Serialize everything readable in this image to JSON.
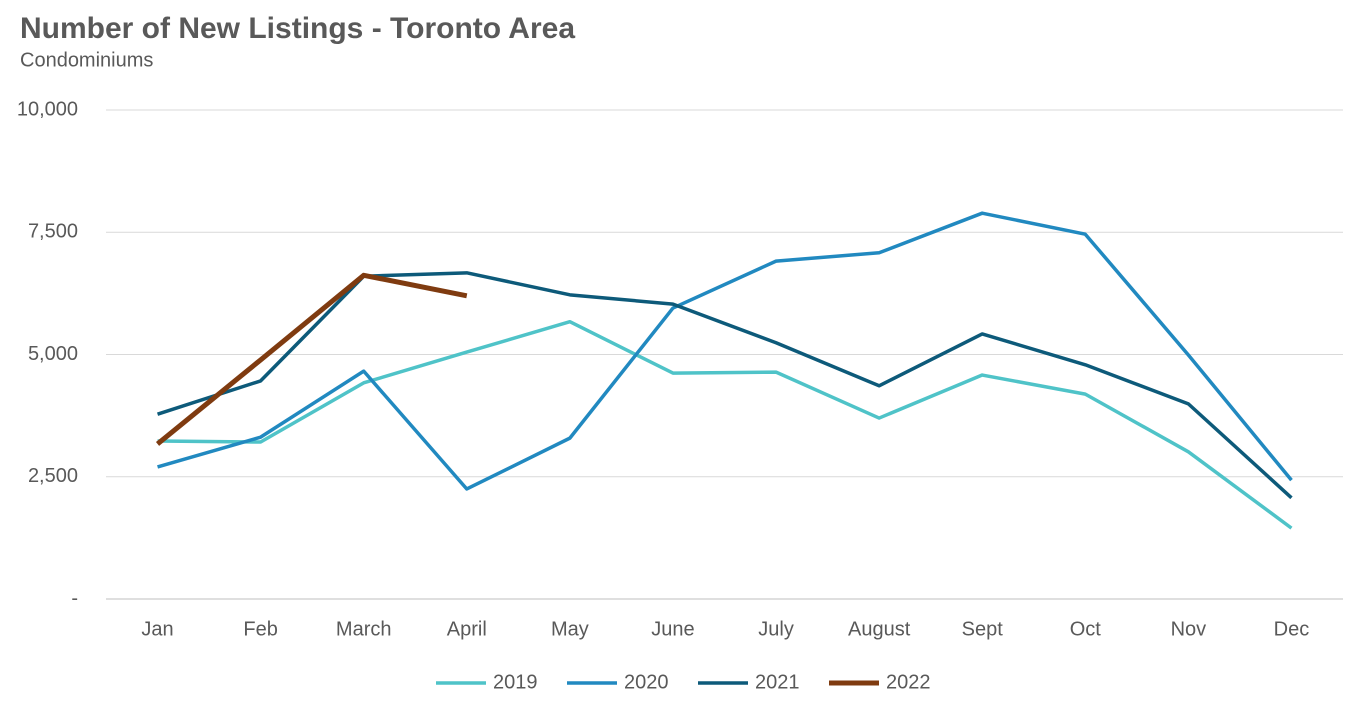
{
  "chart_data": {
    "type": "line",
    "title": "Number of New Listings - Toronto Area",
    "subtitle": "Condominiums",
    "categories": [
      "Jan",
      "Feb",
      "March",
      "April",
      "May",
      "June",
      "July",
      "August",
      "Sept",
      "Oct",
      "Nov",
      "Dec"
    ],
    "series": [
      {
        "name": "2019",
        "color": "#4fc3c8",
        "values": [
          3230,
          3210,
          4420,
          5050,
          5670,
          4620,
          4640,
          3700,
          4580,
          4190,
          3010,
          1450
        ]
      },
      {
        "name": "2020",
        "color": "#2189c0",
        "values": [
          2700,
          3310,
          4660,
          2250,
          3290,
          5950,
          6910,
          7080,
          7890,
          7460,
          4990,
          2430
        ]
      },
      {
        "name": "2021",
        "color": "#0d5a7a",
        "values": [
          3780,
          4460,
          6600,
          6670,
          6220,
          6030,
          5240,
          4360,
          5420,
          4790,
          3990,
          2070
        ]
      },
      {
        "name": "2022",
        "color": "#7f3b10",
        "values": [
          3170,
          4890,
          6620,
          6200,
          null,
          null,
          null,
          null,
          null,
          null,
          null,
          null
        ]
      }
    ],
    "ylim": [
      0,
      10000
    ],
    "yticks": [
      {
        "value": 0,
        "label": "-"
      },
      {
        "value": 2500,
        "label": "2,500"
      },
      {
        "value": 5000,
        "label": "5,000"
      },
      {
        "value": 7500,
        "label": "7,500"
      },
      {
        "value": 10000,
        "label": "10,000"
      }
    ],
    "grid": true,
    "legend": "bottom"
  }
}
